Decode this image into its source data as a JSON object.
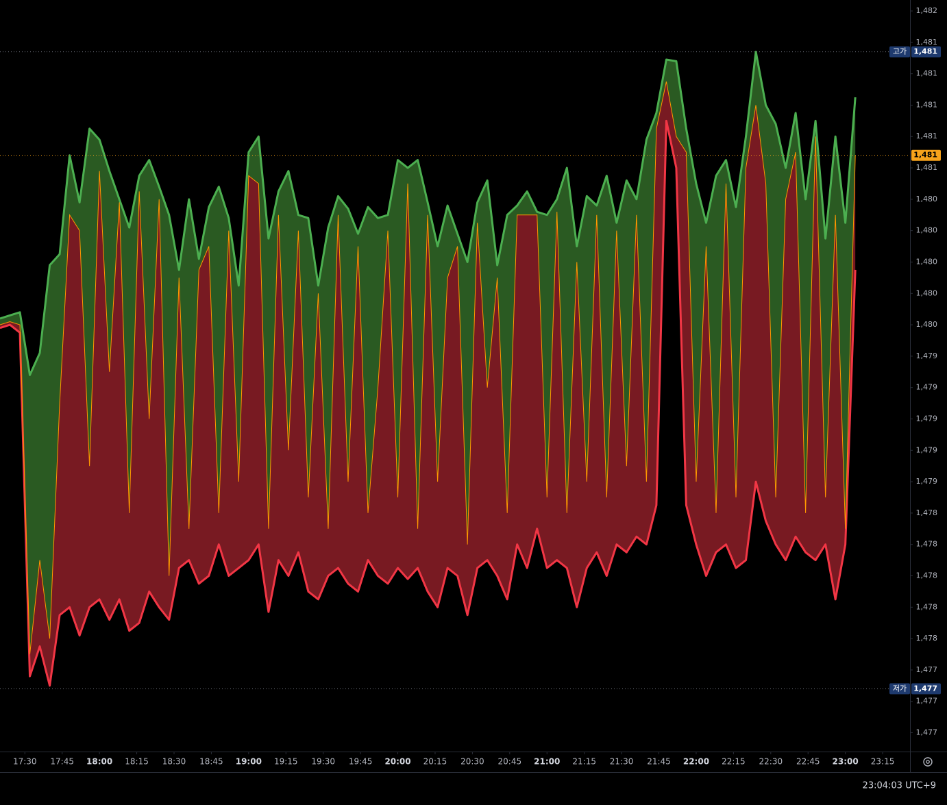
{
  "chart_data": {
    "type": "band",
    "x": [
      "17:20",
      "17:24",
      "17:28",
      "17:32",
      "17:36",
      "17:40",
      "17:44",
      "17:48",
      "17:52",
      "17:56",
      "18:00",
      "18:04",
      "18:08",
      "18:12",
      "18:16",
      "18:20",
      "18:24",
      "18:28",
      "18:32",
      "18:36",
      "18:40",
      "18:44",
      "18:48",
      "18:52",
      "18:56",
      "19:00",
      "19:04",
      "19:08",
      "19:12",
      "19:16",
      "19:20",
      "19:24",
      "19:28",
      "19:32",
      "19:36",
      "19:40",
      "19:44",
      "19:48",
      "19:52",
      "19:56",
      "20:00",
      "20:04",
      "20:08",
      "20:12",
      "20:16",
      "20:20",
      "20:24",
      "20:28",
      "20:32",
      "20:36",
      "20:40",
      "20:44",
      "20:48",
      "20:52",
      "20:56",
      "21:00",
      "21:04",
      "21:08",
      "21:12",
      "21:16",
      "21:20",
      "21:24",
      "21:28",
      "21:32",
      "21:36",
      "21:40",
      "21:44",
      "21:48",
      "21:52",
      "21:56",
      "22:00",
      "22:04",
      "22:08",
      "22:12",
      "22:16",
      "22:20",
      "22:24",
      "22:28",
      "22:32",
      "22:36",
      "22:40",
      "22:44",
      "22:48",
      "22:52",
      "22:56",
      "23:00",
      "23:04"
    ],
    "series": [
      {
        "color": "#4caf50",
        "fill": "#2a5a22",
        "values": [
          1479.64,
          1479.66,
          1479.68,
          1479.28,
          1479.42,
          1479.98,
          1480.05,
          1480.68,
          1480.38,
          1480.85,
          1480.78,
          1480.58,
          1480.4,
          1480.22,
          1480.55,
          1480.65,
          1480.48,
          1480.3,
          1479.95,
          1480.4,
          1480.02,
          1480.35,
          1480.48,
          1480.28,
          1479.85,
          1480.7,
          1480.8,
          1480.15,
          1480.45,
          1480.58,
          1480.3,
          1480.28,
          1479.85,
          1480.22,
          1480.42,
          1480.34,
          1480.18,
          1480.35,
          1480.28,
          1480.3,
          1480.65,
          1480.6,
          1480.65,
          1480.38,
          1480.1,
          1480.36,
          1480.18,
          1480.0,
          1480.38,
          1480.52,
          1479.98,
          1480.3,
          1480.36,
          1480.45,
          1480.32,
          1480.3,
          1480.4,
          1480.6,
          1480.1,
          1480.42,
          1480.36,
          1480.55,
          1480.25,
          1480.52,
          1480.4,
          1480.78,
          1480.95,
          1481.29,
          1481.28,
          1480.85,
          1480.5,
          1480.25,
          1480.55,
          1480.65,
          1480.35,
          1480.8,
          1481.34,
          1481.0,
          1480.88,
          1480.6,
          1480.95,
          1480.4,
          1480.9,
          1480.15,
          1480.8,
          1480.25,
          1481.05
        ]
      },
      {
        "color": "#ff9800",
        "values": [
          1479.6,
          1479.62,
          1479.6,
          1477.5,
          1478.1,
          1477.6,
          1479.1,
          1480.3,
          1480.2,
          1478.7,
          1480.58,
          1479.3,
          1480.38,
          1478.4,
          1480.45,
          1479.0,
          1480.4,
          1478.0,
          1479.9,
          1478.3,
          1479.95,
          1480.1,
          1478.4,
          1480.2,
          1478.6,
          1480.55,
          1480.5,
          1478.3,
          1480.3,
          1478.8,
          1480.2,
          1478.5,
          1479.8,
          1478.3,
          1480.3,
          1478.6,
          1480.1,
          1478.4,
          1479.2,
          1480.2,
          1478.5,
          1480.5,
          1478.3,
          1480.3,
          1478.6,
          1479.9,
          1480.1,
          1478.2,
          1480.25,
          1479.2,
          1479.9,
          1478.4,
          1480.3,
          1480.3,
          1480.3,
          1478.5,
          1480.32,
          1478.4,
          1480.0,
          1478.6,
          1480.3,
          1478.5,
          1480.2,
          1478.7,
          1480.3,
          1478.6,
          1480.85,
          1481.15,
          1480.8,
          1480.7,
          1478.6,
          1480.1,
          1478.4,
          1480.5,
          1478.5,
          1480.6,
          1481.0,
          1480.5,
          1478.5,
          1480.4,
          1480.7,
          1478.4,
          1480.8,
          1478.5,
          1480.3,
          1478.3,
          1480.68
        ]
      },
      {
        "color": "#f23645",
        "fill": "#781a22",
        "values": [
          1479.58,
          1479.6,
          1479.55,
          1477.36,
          1477.55,
          1477.3,
          1477.75,
          1477.8,
          1477.62,
          1477.8,
          1477.85,
          1477.72,
          1477.85,
          1477.65,
          1477.7,
          1477.9,
          1477.8,
          1477.72,
          1478.05,
          1478.1,
          1477.95,
          1478.0,
          1478.2,
          1478.0,
          1478.05,
          1478.1,
          1478.2,
          1477.77,
          1478.1,
          1478.0,
          1478.15,
          1477.9,
          1477.85,
          1478.0,
          1478.05,
          1477.95,
          1477.9,
          1478.1,
          1478.0,
          1477.95,
          1478.05,
          1477.98,
          1478.05,
          1477.9,
          1477.8,
          1478.05,
          1478.0,
          1477.75,
          1478.05,
          1478.1,
          1478.0,
          1477.85,
          1478.2,
          1478.05,
          1478.3,
          1478.05,
          1478.1,
          1478.05,
          1477.8,
          1478.05,
          1478.15,
          1478.0,
          1478.2,
          1478.15,
          1478.25,
          1478.2,
          1478.45,
          1480.9,
          1480.6,
          1478.45,
          1478.2,
          1478.0,
          1478.15,
          1478.2,
          1478.05,
          1478.1,
          1478.6,
          1478.35,
          1478.2,
          1478.1,
          1478.25,
          1478.15,
          1478.1,
          1478.2,
          1477.85,
          1478.2,
          1479.95
        ]
      }
    ],
    "xlim": [
      "17:20",
      "23:26"
    ],
    "xticks": [
      "17:30",
      "17:45",
      "18:00",
      "18:15",
      "18:30",
      "18:45",
      "19:00",
      "19:15",
      "19:30",
      "19:45",
      "20:00",
      "20:15",
      "20:30",
      "20:45",
      "21:00",
      "21:15",
      "21:30",
      "21:45",
      "22:00",
      "22:15",
      "22:30",
      "22:45",
      "23:00",
      "23:15"
    ],
    "ylim": [
      1476.88,
      1481.67
    ],
    "yticks": [
      {
        "value": 1481.6,
        "label": "1,482"
      },
      {
        "value": 1481.4,
        "label": "1,481"
      },
      {
        "value": 1481.2,
        "label": "1,481"
      },
      {
        "value": 1481.0,
        "label": "1,481"
      },
      {
        "value": 1480.8,
        "label": "1,481"
      },
      {
        "value": 1480.6,
        "label": "1,481"
      },
      {
        "value": 1480.4,
        "label": "1,480"
      },
      {
        "value": 1480.2,
        "label": "1,480"
      },
      {
        "value": 1480.0,
        "label": "1,480"
      },
      {
        "value": 1479.8,
        "label": "1,480"
      },
      {
        "value": 1479.6,
        "label": "1,480"
      },
      {
        "value": 1479.4,
        "label": "1,479"
      },
      {
        "value": 1479.2,
        "label": "1,479"
      },
      {
        "value": 1479.0,
        "label": "1,479"
      },
      {
        "value": 1478.8,
        "label": "1,479"
      },
      {
        "value": 1478.6,
        "label": "1,479"
      },
      {
        "value": 1478.4,
        "label": "1,478"
      },
      {
        "value": 1478.2,
        "label": "1,478"
      },
      {
        "value": 1478.0,
        "label": "1,478"
      },
      {
        "value": 1477.8,
        "label": "1,478"
      },
      {
        "value": 1477.6,
        "label": "1,478"
      },
      {
        "value": 1477.4,
        "label": "1,477"
      },
      {
        "value": 1477.2,
        "label": "1,477"
      },
      {
        "value": 1477.0,
        "label": "1,477"
      }
    ],
    "price_lines": [
      {
        "label": "고가",
        "value": 1481.34,
        "value_label": "1,481",
        "color": "#1e3a6e"
      },
      {
        "value": 1480.68,
        "value_label": "1,481",
        "color": "#f7a21b"
      },
      {
        "label": "저가",
        "value": 1477.28,
        "value_label": "1,477",
        "color": "#1e3a6e"
      }
    ],
    "clock": "23:04:03 UTC+9"
  }
}
